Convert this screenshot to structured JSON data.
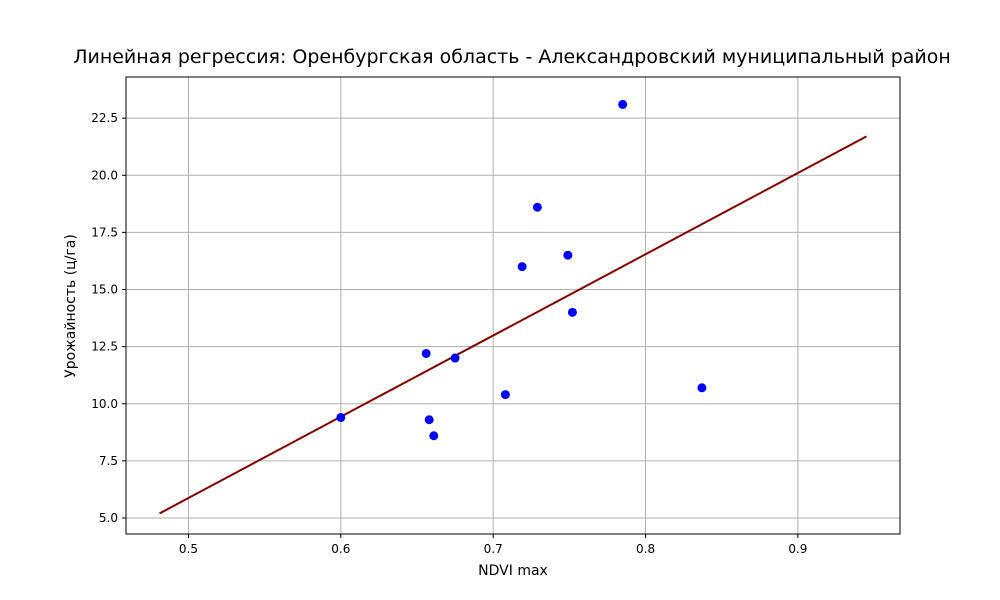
{
  "chart_data": {
    "type": "scatter",
    "title": "Линейная регрессия: Оренбургская область - Александровский муниципальный район",
    "xlabel": "NDVI max",
    "ylabel": "Урожайность (ц/га)",
    "xlim": [
      0.459,
      0.967
    ],
    "ylim": [
      4.3,
      24.3
    ],
    "xticks": [
      0.5,
      0.6,
      0.7,
      0.8,
      0.9
    ],
    "xtick_labels": [
      "0.5",
      "0.6",
      "0.7",
      "0.8",
      "0.9"
    ],
    "yticks": [
      5.0,
      7.5,
      10.0,
      12.5,
      15.0,
      17.5,
      20.0,
      22.5
    ],
    "ytick_labels": [
      "5.0",
      "7.5",
      "10.0",
      "12.5",
      "15.0",
      "17.5",
      "20.0",
      "22.5"
    ],
    "grid": true,
    "series": [
      {
        "kind": "scatter",
        "color": "#0000ff",
        "points": [
          {
            "x": 0.6,
            "y": 9.4
          },
          {
            "x": 0.656,
            "y": 12.2
          },
          {
            "x": 0.658,
            "y": 9.3
          },
          {
            "x": 0.661,
            "y": 8.6
          },
          {
            "x": 0.675,
            "y": 12.0
          },
          {
            "x": 0.708,
            "y": 10.4
          },
          {
            "x": 0.719,
            "y": 16.0
          },
          {
            "x": 0.729,
            "y": 18.6
          },
          {
            "x": 0.749,
            "y": 16.5
          },
          {
            "x": 0.752,
            "y": 14.0
          },
          {
            "x": 0.785,
            "y": 23.1
          },
          {
            "x": 0.837,
            "y": 10.7
          }
        ]
      },
      {
        "kind": "line",
        "color": "#800000",
        "points": [
          {
            "x": 0.481,
            "y": 5.2
          },
          {
            "x": 0.945,
            "y": 21.7
          }
        ]
      }
    ]
  }
}
